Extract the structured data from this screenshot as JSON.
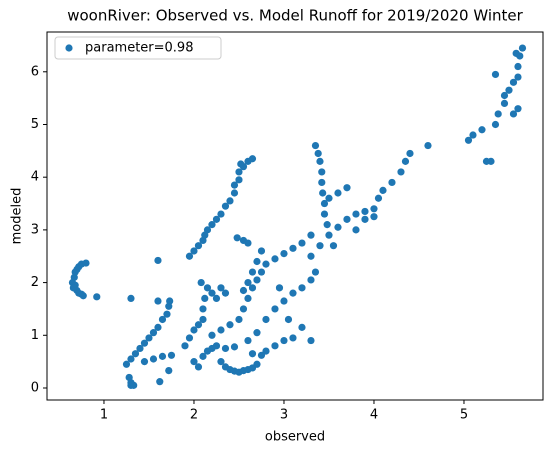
{
  "chart_data": {
    "type": "scatter",
    "title": "woonRiver: Observed vs. Model Runoff for 2019/2020 Winter",
    "x_label": "observed",
    "y_label": "modeled",
    "legend": "upper left",
    "xlim": [
      0.367,
      5.878
    ],
    "ylim": [
      -0.228,
      6.755
    ],
    "xticks": [
      1,
      2,
      3,
      4,
      5
    ],
    "yticks": [
      0,
      1,
      2,
      3,
      4,
      5,
      6
    ],
    "x": [
      0.65,
      0.67,
      0.68,
      0.7,
      0.72,
      0.75,
      0.8,
      0.68,
      0.7,
      0.72,
      0.75,
      0.77,
      0.92,
      0.66,
      1.25,
      1.3,
      1.35,
      1.4,
      1.45,
      1.5,
      1.55,
      1.6,
      1.65,
      1.7,
      1.72,
      1.73,
      1.3,
      1.28,
      1.3,
      1.33,
      1.62,
      1.72,
      1.3,
      1.6,
      1.6,
      1.45,
      1.55,
      1.65,
      1.75,
      1.95,
      2.0,
      2.05,
      2.1,
      2.12,
      2.15,
      2.2,
      2.25,
      2.3,
      2.35,
      2.4,
      2.45,
      2.45,
      2.5,
      2.5,
      2.55,
      2.6,
      2.65,
      2.52,
      2.55,
      2.6,
      2.48,
      1.9,
      1.95,
      2.0,
      2.05,
      2.1,
      2.1,
      2.12,
      2.15,
      2.08,
      2.2,
      2.25,
      2.3,
      2.35,
      2.0,
      2.05,
      2.1,
      2.15,
      2.2,
      2.25,
      2.3,
      2.35,
      2.4,
      2.45,
      2.5,
      2.55,
      2.6,
      2.65,
      2.7,
      2.35,
      2.45,
      2.2,
      2.3,
      2.4,
      2.5,
      2.55,
      2.6,
      2.65,
      2.7,
      2.75,
      2.8,
      2.9,
      3.0,
      3.1,
      3.2,
      3.3,
      2.65,
      2.7,
      2.75,
      2.6,
      2.55,
      2.6,
      2.7,
      2.8,
      2.9,
      3.0,
      3.1,
      3.2,
      3.3,
      3.35,
      3.35,
      3.38,
      3.4,
      3.42,
      3.42,
      3.43,
      3.45,
      3.45,
      3.48,
      3.5,
      3.55,
      3.3,
      3.4,
      3.6,
      3.7,
      3.8,
      3.9,
      4.0,
      4.05,
      4.1,
      4.2,
      4.3,
      4.35,
      4.4,
      4.6,
      3.8,
      3.6,
      3.7,
      3.5,
      3.9,
      4.0,
      2.8,
      2.9,
      3.0,
      3.1,
      3.3,
      2.65,
      2.75,
      3.05,
      3.2,
      2.95,
      5.05,
      5.1,
      5.2,
      5.25,
      5.3,
      5.35,
      5.38,
      5.45,
      5.45,
      5.5,
      5.55,
      5.6,
      5.6,
      5.62,
      5.65,
      5.58,
      5.35,
      5.55,
      5.6
    ],
    "series": [
      {
        "name": "parameter=0.98",
        "color": "#1f77b4",
        "values": [
          2.0,
          2.1,
          2.2,
          2.25,
          2.3,
          2.35,
          2.37,
          1.95,
          1.85,
          1.8,
          1.78,
          1.75,
          1.73,
          1.9,
          0.45,
          0.55,
          0.65,
          0.75,
          0.85,
          0.95,
          1.05,
          1.15,
          1.3,
          1.4,
          1.55,
          1.65,
          0.1,
          0.2,
          0.05,
          0.05,
          0.12,
          0.33,
          1.7,
          2.42,
          1.65,
          0.5,
          0.55,
          0.6,
          0.62,
          2.5,
          2.6,
          2.7,
          2.8,
          2.9,
          3.0,
          3.1,
          3.2,
          3.3,
          3.45,
          3.55,
          3.7,
          3.85,
          3.95,
          4.1,
          4.2,
          4.3,
          4.35,
          4.25,
          2.8,
          2.75,
          2.85,
          0.8,
          0.95,
          1.1,
          1.2,
          1.3,
          1.5,
          1.7,
          1.9,
          2.0,
          1.8,
          1.7,
          1.9,
          1.8,
          0.5,
          0.4,
          0.6,
          0.7,
          0.75,
          0.8,
          0.5,
          0.4,
          0.35,
          0.32,
          0.3,
          0.33,
          0.35,
          0.38,
          0.45,
          0.75,
          0.78,
          1.0,
          1.1,
          1.2,
          1.3,
          1.5,
          1.7,
          1.9,
          2.05,
          2.2,
          2.35,
          2.45,
          2.55,
          2.65,
          2.75,
          2.9,
          2.2,
          2.4,
          2.6,
          2.0,
          1.85,
          0.9,
          1.05,
          1.3,
          1.5,
          1.65,
          1.8,
          1.9,
          2.05,
          2.2,
          4.6,
          4.45,
          4.3,
          4.1,
          3.9,
          3.7,
          3.5,
          3.3,
          3.1,
          2.9,
          2.7,
          2.5,
          2.7,
          3.05,
          3.2,
          3.3,
          3.35,
          3.4,
          3.6,
          3.75,
          3.9,
          4.1,
          4.3,
          4.45,
          4.6,
          3.0,
          3.7,
          3.8,
          3.6,
          3.2,
          3.25,
          0.7,
          0.8,
          0.9,
          0.95,
          0.9,
          0.65,
          0.62,
          1.3,
          1.15,
          1.9,
          4.7,
          4.8,
          4.9,
          4.3,
          4.3,
          5.0,
          5.2,
          5.55,
          5.4,
          5.65,
          5.8,
          5.9,
          6.1,
          6.3,
          6.45,
          6.35,
          5.95,
          5.2,
          5.3
        ]
      }
    ]
  }
}
